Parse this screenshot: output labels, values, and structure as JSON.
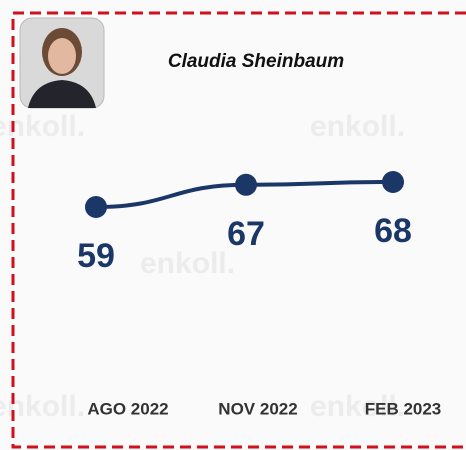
{
  "chart_data": {
    "type": "line",
    "title": "Claudia Sheinbaum",
    "watermark": "enkoll.",
    "categories": [
      "AGO 2022",
      "NOV 2022",
      "FEB 2023"
    ],
    "series": [
      {
        "name": "Claudia Sheinbaum",
        "color": "#1b3768",
        "values": [
          59,
          67,
          68
        ]
      }
    ]
  }
}
